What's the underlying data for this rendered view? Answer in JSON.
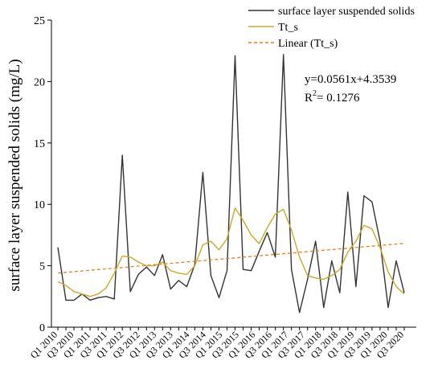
{
  "chart_data": {
    "type": "line",
    "title": "",
    "xlabel": "",
    "ylabel": "surface layer suspended solids (mg/L)",
    "ylim": [
      0,
      25
    ],
    "yticks": [
      0,
      5,
      10,
      15,
      20,
      25
    ],
    "x_tick_labels": [
      "Q1 2010",
      "Q3 2010",
      "Q1 2011",
      "Q3 2011",
      "Q1 2012",
      "Q3 2012",
      "Q1 2013",
      "Q3 2013",
      "Q1 2014",
      "Q3 2014",
      "Q1 2015",
      "Q3 2015",
      "Q1 2016",
      "Q3 2016",
      "Q1 2017",
      "Q3 2017",
      "Q1 2018",
      "Q3 2018",
      "Q1 2019",
      "Q3 2019",
      "Q1 2020",
      "Q3 2020"
    ],
    "legend_position": "top-right",
    "grid": false,
    "series": [
      {
        "name": "surface layer suspended solids",
        "style": "solid",
        "color": "#333333",
        "values": [
          6.5,
          2.2,
          2.2,
          2.7,
          2.2,
          2.4,
          2.5,
          2.3,
          14.0,
          2.9,
          4.3,
          4.9,
          4.2,
          5.9,
          3.1,
          3.8,
          3.3,
          5.1,
          12.6,
          4.2,
          2.4,
          4.6,
          22.1,
          4.7,
          4.6,
          6.2,
          7.7,
          5.7,
          22.2,
          4.7,
          1.2,
          3.9,
          7.0,
          1.6,
          5.4,
          2.8,
          11.0,
          3.3,
          10.7,
          10.2,
          7.0,
          1.6,
          5.4,
          2.8
        ]
      },
      {
        "name": "Tt_s",
        "style": "solid",
        "color": "#c9a92a",
        "values": [
          3.7,
          3.4,
          2.9,
          2.7,
          2.5,
          2.7,
          3.2,
          4.4,
          5.8,
          5.7,
          5.3,
          5.0,
          5.0,
          5.3,
          4.6,
          4.4,
          4.3,
          5.0,
          6.7,
          7.0,
          6.3,
          7.2,
          9.7,
          8.7,
          7.5,
          6.8,
          8.1,
          9.2,
          9.6,
          7.9,
          5.7,
          4.2,
          4.0,
          3.9,
          4.2,
          4.7,
          6.1,
          7.0,
          8.3,
          8.0,
          6.5,
          4.5,
          3.3,
          2.7
        ]
      },
      {
        "name": "Linear (Tt_s)",
        "style": "dashed",
        "color": "#e87f1e",
        "values": []
      }
    ],
    "trendline": {
      "slope": 0.0561,
      "intercept": 4.3539
    },
    "annotations": {
      "equation": "y=0.0561x+4.3539",
      "r2_prefix": "R",
      "r2_sup": "2",
      "r2_value": "= 0.1276"
    }
  }
}
